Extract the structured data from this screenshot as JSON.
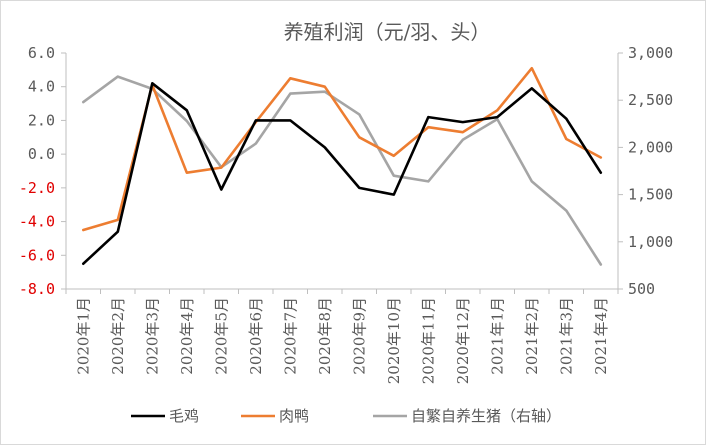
{
  "chart_data": {
    "type": "line",
    "title": "养殖利润（元/羽、头）",
    "categories": [
      "2020年1月",
      "2020年2月",
      "2020年3月",
      "2020年4月",
      "2020年5月",
      "2020年6月",
      "2020年7月",
      "2020年8月",
      "2020年9月",
      "2020年10月",
      "2020年11月",
      "2020年12月",
      "2021年1月",
      "2021年2月",
      "2021年3月",
      "2021年4月"
    ],
    "y_left": {
      "ylim": [
        -8,
        6
      ],
      "tick_labels": [
        "6.0",
        "4.0",
        "2.0",
        "0.0",
        "-2.0",
        "-4.0",
        "-6.0",
        "-8.0"
      ],
      "tick_values": [
        6,
        4,
        2,
        0,
        -2,
        -4,
        -6,
        -8
      ],
      "negative_label_color": "#e00000"
    },
    "y_right": {
      "ylim": [
        500,
        3000
      ],
      "tick_labels": [
        "3,000",
        "2,500",
        "2,000",
        "1,500",
        "1,000",
        "500"
      ],
      "tick_values": [
        3000,
        2500,
        2000,
        1500,
        1000,
        500
      ]
    },
    "series": [
      {
        "name": "毛鸡",
        "axis": "left",
        "color": "#000000",
        "values": [
          -6.5,
          -4.6,
          4.2,
          2.6,
          -2.1,
          2.0,
          2.0,
          0.4,
          -2.0,
          -2.4,
          2.2,
          1.9,
          2.2,
          3.9,
          2.1,
          -1.1
        ]
      },
      {
        "name": "肉鸭",
        "axis": "left",
        "color": "#ed7d31",
        "values": [
          -4.5,
          -3.9,
          4.1,
          -1.1,
          -0.8,
          1.9,
          4.5,
          4.0,
          1.0,
          -0.1,
          1.6,
          1.3,
          2.6,
          5.1,
          0.9,
          -0.2
        ]
      },
      {
        "name": "自繁自养生猪（右轴）",
        "axis": "right",
        "color": "#a5a5a5",
        "values": [
          2480,
          2750,
          2620,
          2280,
          1790,
          2040,
          2570,
          2590,
          2350,
          1700,
          1640,
          2080,
          2300,
          1640,
          1330,
          760
        ]
      }
    ],
    "legend_position": "bottom",
    "grid": false
  }
}
